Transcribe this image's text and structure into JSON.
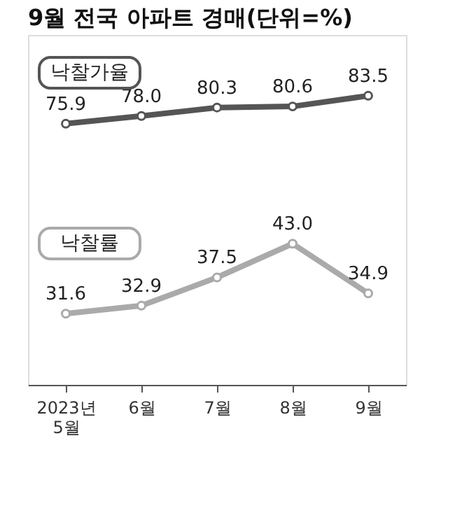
{
  "chart_data": {
    "type": "line",
    "title": "9월 전국 아파트 경매(단위=%)",
    "categories": [
      "2023년 5월",
      "6월",
      "7월",
      "8월",
      "9월"
    ],
    "ylim": [
      5,
      100
    ],
    "y2lim": [
      20,
      77
    ],
    "tick_labels": "x",
    "marker": "circle",
    "grid": false,
    "legend": false,
    "series": [
      {
        "name": "낙찰가율",
        "color": "#555555",
        "values": [
          75.9,
          78.0,
          80.3,
          80.6,
          83.5
        ],
        "value_labels": [
          "75.9",
          "78.0",
          "80.3",
          "80.6",
          "83.5"
        ]
      },
      {
        "name": "낙찰률",
        "color": "#aaaaaa",
        "axis": "y2",
        "values": [
          31.6,
          32.9,
          37.5,
          43.0,
          34.9
        ],
        "value_labels": [
          "31.6",
          "32.9",
          "37.5",
          "43.0",
          "34.9"
        ]
      }
    ]
  }
}
